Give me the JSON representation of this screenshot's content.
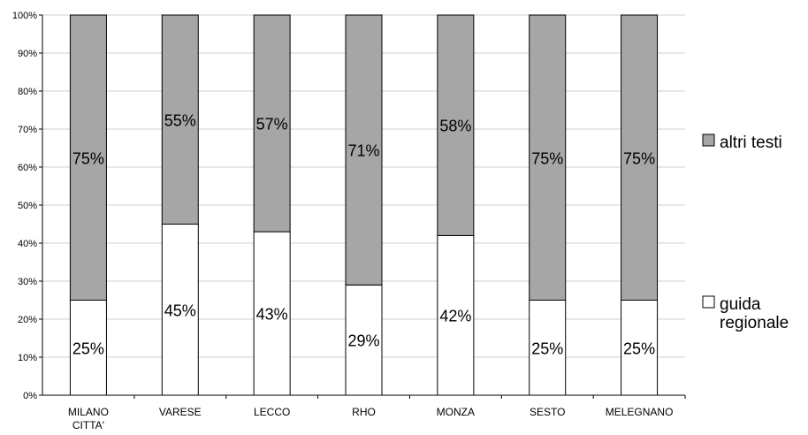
{
  "chart_data": {
    "type": "bar",
    "stacked": true,
    "categories": [
      "MILANO CITTA'",
      "VARESE",
      "LECCO",
      "RHO",
      "MONZA",
      "SESTO",
      "MELEGNANO"
    ],
    "category_lines": [
      [
        "MILANO",
        "CITTA'"
      ],
      [
        "VARESE"
      ],
      [
        "LECCO"
      ],
      [
        "RHO"
      ],
      [
        "MONZA"
      ],
      [
        "SESTO"
      ],
      [
        "MELEGNANO"
      ]
    ],
    "series": [
      {
        "name": "guida regionale",
        "values": [
          25,
          45,
          43,
          29,
          42,
          25,
          25
        ],
        "color": "#ffffff"
      },
      {
        "name": "altri testi",
        "values": [
          75,
          55,
          57,
          71,
          58,
          75,
          75
        ],
        "color": "#a6a6a6"
      }
    ],
    "ylim": [
      0,
      100
    ],
    "yticks": [
      "0%",
      "10%",
      "20%",
      "30%",
      "40%",
      "50%",
      "60%",
      "70%",
      "80%",
      "90%",
      "100%"
    ],
    "grid": true,
    "legend_position": "right",
    "legend": [
      {
        "lines": [
          "altri testi"
        ],
        "series": 1
      },
      {
        "lines": [
          "guida",
          "regionale"
        ],
        "series": 0
      }
    ]
  }
}
